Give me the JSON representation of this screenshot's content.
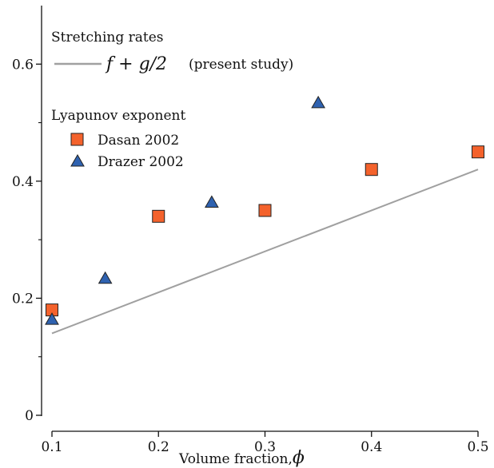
{
  "chart_data": {
    "type": "scatter",
    "xlabel": "Volume fraction,",
    "xlabel_symbol": "ϕ",
    "xlim": [
      0.1,
      0.5
    ],
    "ylim": [
      0,
      0.7
    ],
    "x_ticks": [
      0.1,
      0.2,
      0.3,
      0.4,
      0.5
    ],
    "x_tick_labels": [
      "0.1",
      "0.2",
      "0.3",
      "0.4",
      "0.5"
    ],
    "y_ticks": [
      0,
      0.2,
      0.4,
      0.6
    ],
    "y_tick_labels": [
      "0",
      "0.2",
      "0.4",
      "0.6"
    ],
    "y_minor_ticks": [
      0.1,
      0.3,
      0.5
    ],
    "grid": false,
    "legend_placement": "top-left",
    "legend": {
      "line_group_title": "Stretching rates",
      "line_entry_math": "f + g/2",
      "line_entry_note": "(present study)",
      "points_group_title": "Lyapunov exponent"
    },
    "series": [
      {
        "name": "f + g/2 (present study)",
        "kind": "line",
        "color": "#a0a0a0",
        "x": [
          0.1,
          0.5
        ],
        "y": [
          0.14,
          0.42
        ]
      },
      {
        "name": "Dasan 2002",
        "kind": "marker",
        "marker": "square",
        "color": "#f4622c",
        "x": [
          0.1,
          0.2,
          0.3,
          0.4,
          0.5
        ],
        "y": [
          0.18,
          0.34,
          0.35,
          0.42,
          0.45
        ]
      },
      {
        "name": "Drazer 2002",
        "kind": "marker",
        "marker": "triangle",
        "color": "#2f62b0",
        "x": [
          0.1,
          0.15,
          0.25,
          0.35
        ],
        "y": [
          0.165,
          0.235,
          0.365,
          0.535
        ]
      }
    ]
  }
}
